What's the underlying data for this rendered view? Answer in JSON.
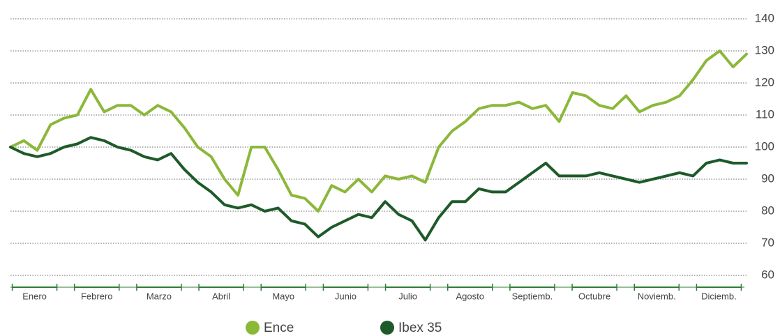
{
  "chart_data": {
    "type": "line",
    "x_labels": [
      "Enero",
      "Febrero",
      "Marzo",
      "Abril",
      "Mayo",
      "Junio",
      "Julio",
      "Agosto",
      "Septiemb.",
      "Octubre",
      "Noviemb.",
      "Diciemb."
    ],
    "series": [
      {
        "name": "Ence",
        "color": "#8cb83a",
        "values": [
          100,
          102,
          99,
          107,
          109,
          110,
          118,
          111,
          113,
          113,
          110,
          113,
          111,
          106,
          100,
          97,
          90,
          85,
          100,
          100,
          93,
          85,
          84,
          80,
          88,
          86,
          90,
          86,
          91,
          90,
          91,
          89,
          100,
          105,
          108,
          112,
          113,
          113,
          114,
          112,
          113,
          108,
          117,
          116,
          113,
          112,
          116,
          111,
          113,
          114,
          116,
          121,
          127,
          130,
          125,
          129
        ]
      },
      {
        "name": "Ibex 35",
        "color": "#1e5a2a",
        "values": [
          100,
          98,
          97,
          98,
          100,
          101,
          103,
          102,
          100,
          99,
          97,
          96,
          98,
          93,
          89,
          86,
          82,
          81,
          82,
          80,
          81,
          77,
          76,
          72,
          75,
          77,
          79,
          78,
          83,
          79,
          77,
          71,
          78,
          83,
          83,
          87,
          86,
          86,
          89,
          92,
          95,
          91,
          91,
          91,
          92,
          91,
          90,
          89,
          90,
          91,
          92,
          91,
          95,
          96,
          95,
          95
        ]
      }
    ],
    "ylim": [
      60,
      140
    ],
    "yticks": [
      60,
      70,
      80,
      90,
      100,
      110,
      120,
      130,
      140
    ],
    "grid": true
  }
}
